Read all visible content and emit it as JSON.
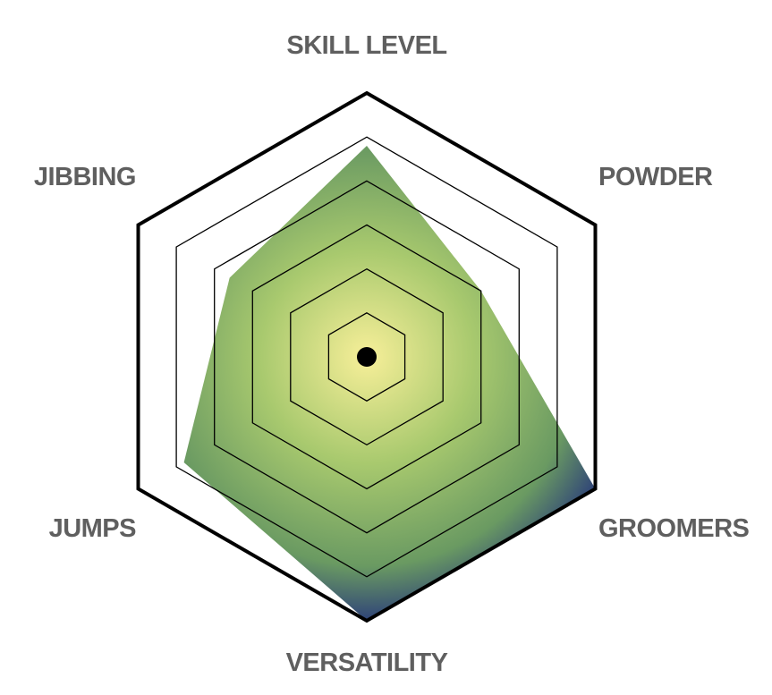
{
  "chart_data": {
    "type": "radar",
    "axes": [
      "SKILL LEVEL",
      "POWDER",
      "GROOMERS",
      "VERSATILITY",
      "JUMPS",
      "JIBBING"
    ],
    "values": [
      8,
      5,
      10,
      10,
      8,
      6
    ],
    "range": [
      0,
      10
    ],
    "rings": 5,
    "grid": true,
    "colors": {
      "ring": "#000000",
      "outer_ring": "#000000",
      "center_dot": "#000000",
      "label": "#5f5f5f",
      "fill_center": "#f7ef99",
      "fill_mid": "#a8c96e",
      "fill_outer": "#6a9a62",
      "fill_edge": "#2a3c7a"
    }
  }
}
